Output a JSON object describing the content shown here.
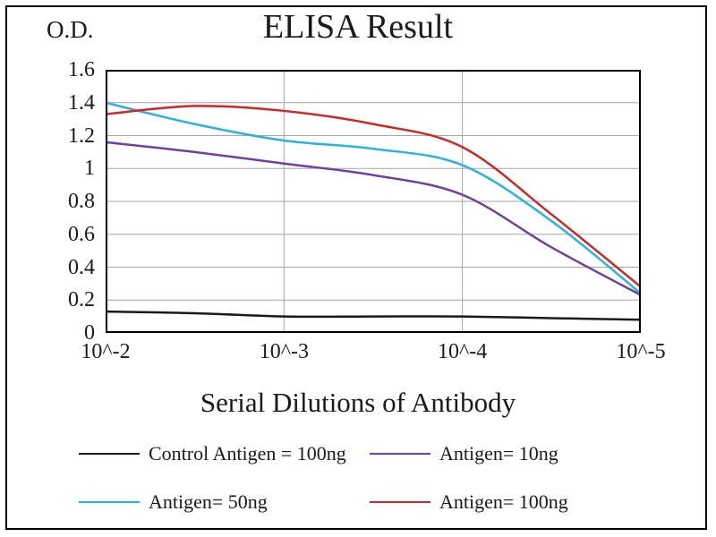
{
  "chart_data": {
    "type": "line",
    "title": "ELISA Result",
    "ylabel": "O.D.",
    "xlabel": "Serial Dilutions of Antibody",
    "x_tick_labels": [
      "10^-2",
      "10^-3",
      "10^-4",
      "10^-5"
    ],
    "y_tick_labels": [
      "0",
      "0.2",
      "0.4",
      "0.6",
      "0.8",
      "1",
      "1.2",
      "1.4",
      "1.6"
    ],
    "ylim": [
      0,
      1.6
    ],
    "x_decades": 3,
    "grid": true,
    "legend_position": "bottom",
    "series": [
      {
        "name": "Control Antigen = 100ng",
        "color": "#1a1a1a",
        "x": [
          0,
          0.5,
          1,
          1.5,
          2,
          2.5,
          3
        ],
        "values": [
          0.13,
          0.12,
          0.1,
          0.1,
          0.1,
          0.09,
          0.08
        ]
      },
      {
        "name": "Antigen= 10ng",
        "color": "#7040a0",
        "x": [
          0,
          0.5,
          1,
          1.5,
          2,
          2.5,
          3
        ],
        "values": [
          1.16,
          1.1,
          1.03,
          0.96,
          0.84,
          0.52,
          0.23
        ]
      },
      {
        "name": "Antigen= 50ng",
        "color": "#2ab4d9",
        "x": [
          0,
          0.5,
          1,
          1.5,
          2,
          2.5,
          3
        ],
        "values": [
          1.4,
          1.27,
          1.17,
          1.12,
          1.02,
          0.68,
          0.24
        ]
      },
      {
        "name": "Antigen= 100ng",
        "color": "#cf2626",
        "x": [
          0,
          0.5,
          1,
          1.5,
          2,
          2.5,
          3
        ],
        "values": [
          1.33,
          1.38,
          1.35,
          1.27,
          1.13,
          0.72,
          0.28
        ]
      }
    ]
  }
}
